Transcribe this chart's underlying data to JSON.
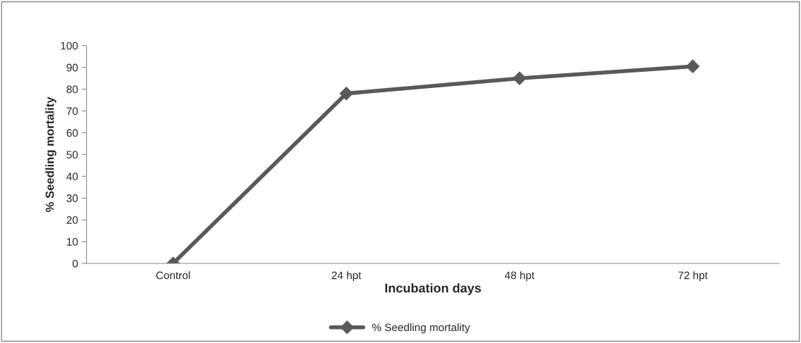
{
  "chart_data": {
    "type": "line",
    "xlabel": "Incubation days",
    "ylabel": "% Seedling mortality",
    "categories": [
      "Control",
      "24 hpt",
      "48 hpt",
      "72 hpt"
    ],
    "series": [
      {
        "name": "% Seedling mortality",
        "color": "#595959",
        "values": [
          0,
          78,
          85,
          90.5
        ]
      }
    ],
    "ylim": [
      0,
      100
    ],
    "yticks": [
      0,
      10,
      20,
      30,
      40,
      50,
      60,
      70,
      80,
      90,
      100
    ],
    "grid": false,
    "legend": "bottom",
    "marker": "diamond",
    "line_style": "solid"
  }
}
